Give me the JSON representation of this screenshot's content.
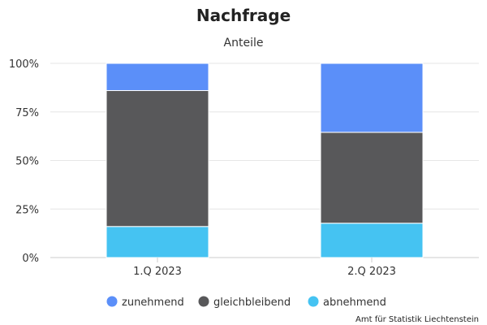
{
  "chart_data": {
    "type": "bar",
    "stacked": true,
    "title": "Nachfrage",
    "subtitle": "Anteile",
    "categories": [
      "1.Q 2023",
      "2.Q 2023"
    ],
    "series": [
      {
        "name": "abnehmend",
        "color": "#45c3f2",
        "values": [
          16,
          17.7
        ]
      },
      {
        "name": "gleichbleibend",
        "color": "#58585a",
        "values": [
          70,
          46.8
        ]
      },
      {
        "name": "zunehmend",
        "color": "#5b8ff9",
        "values": [
          14,
          35.5
        ]
      }
    ],
    "legend_order": [
      "zunehmend",
      "gleichbleibend",
      "abnehmend"
    ],
    "ylim": [
      0,
      100
    ],
    "y_ticks": [
      "0%",
      "25%",
      "50%",
      "75%",
      "100%"
    ],
    "grid": true,
    "legend_position": "bottom"
  },
  "credit": "Amt für Statistik Liechtenstein"
}
